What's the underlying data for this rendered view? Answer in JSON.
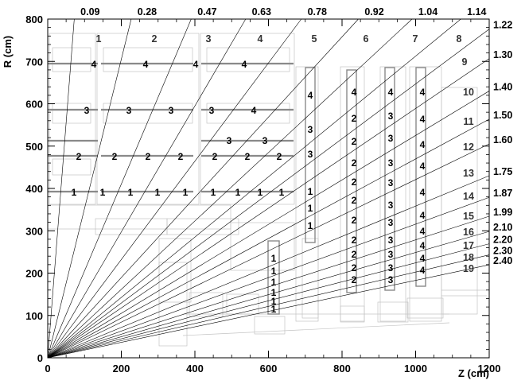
{
  "axes": {
    "x_title": "Z (cm)",
    "y_title": "R (cm)",
    "x_ticks": [
      "0",
      "200",
      "400",
      "600",
      "800",
      "1000",
      "1200"
    ],
    "y_ticks": [
      "0",
      "100",
      "200",
      "300",
      "400",
      "500",
      "600",
      "700",
      "800"
    ],
    "xlim": [
      0,
      1200
    ],
    "ylim": [
      0,
      800
    ]
  },
  "eta_lines": [
    {
      "label": "0.09",
      "edge": "top"
    },
    {
      "label": "0.28",
      "edge": "top"
    },
    {
      "label": "0.47",
      "edge": "top"
    },
    {
      "label": "0.63",
      "edge": "top"
    },
    {
      "label": "0.78",
      "edge": "top"
    },
    {
      "label": "0.92",
      "edge": "top"
    },
    {
      "label": "1.04",
      "edge": "top"
    },
    {
      "label": "1.14",
      "edge": "top"
    },
    {
      "label": "1.22",
      "edge": "right"
    },
    {
      "label": "1.30",
      "edge": "right"
    },
    {
      "label": "1.40",
      "edge": "right"
    },
    {
      "label": "1.50",
      "edge": "right"
    },
    {
      "label": "1.60",
      "edge": "right"
    },
    {
      "label": "1.75",
      "edge": "right"
    },
    {
      "label": "1.87",
      "edge": "right"
    },
    {
      "label": "1.99",
      "edge": "right"
    },
    {
      "label": "2.10",
      "edge": "right"
    },
    {
      "label": "2.20",
      "edge": "right"
    },
    {
      "label": "2.30",
      "edge": "right"
    },
    {
      "label": "2.40",
      "edge": "right"
    }
  ],
  "sections": [
    "1",
    "2",
    "3",
    "4",
    "5",
    "6",
    "7",
    "8",
    "9",
    "10",
    "11",
    "12",
    "13",
    "14",
    "15",
    "16",
    "17",
    "18",
    "19"
  ],
  "barrel_stations": {
    "row_700": [
      "4",
      "4",
      "4",
      "4"
    ],
    "row_590": [
      "3",
      "3",
      "3",
      "3",
      "4"
    ],
    "row_520": [
      "3",
      "3"
    ],
    "row_480": [
      "2",
      "2",
      "2",
      "2",
      "2",
      "2",
      "2"
    ],
    "row_395": [
      "1",
      "1",
      "1",
      "1",
      "1",
      "1",
      "1",
      "1",
      "1"
    ]
  },
  "endcap_stations": {
    "col_610": [
      "1",
      "1",
      "1",
      "1",
      "1",
      "1"
    ],
    "col_720": [
      "4",
      "3",
      "3",
      "1",
      "1",
      "1"
    ],
    "col_830": [
      "4",
      "2",
      "2",
      "2",
      "2",
      "2",
      "2",
      "2",
      "2",
      "2",
      "2"
    ],
    "col_930": [
      "4",
      "3",
      "3",
      "3",
      "3",
      "3",
      "3",
      "3",
      "3",
      "3",
      "3"
    ],
    "col_1015": [
      "4",
      "4",
      "4",
      "4",
      "4",
      "4",
      "4",
      "4",
      "4",
      "4"
    ]
  }
}
